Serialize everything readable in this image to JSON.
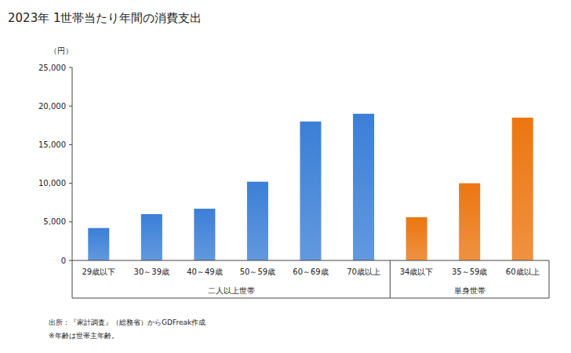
{
  "chart_data": {
    "type": "bar",
    "title": "2023年 1世帯当たり年間の消費支出",
    "y_label": "（円）",
    "categories": [
      "29歳以下",
      "30～39歳",
      "40～49歳",
      "50～59歳",
      "60～69歳",
      "70歳以上",
      "34歳以下",
      "35～59歳",
      "60歳以上"
    ],
    "values": [
      4200,
      6000,
      6700,
      10200,
      18000,
      19000,
      5600,
      10000,
      18500
    ],
    "colors": [
      "#3b7fd6",
      "#3b7fd6",
      "#3b7fd6",
      "#3b7fd6",
      "#3b7fd6",
      "#3b7fd6",
      "#ec7611",
      "#ec7611",
      "#ec7611"
    ],
    "groups": [
      {
        "name": "二人以上世帯",
        "size": 6
      },
      {
        "name": "単身世帯",
        "size": 3
      }
    ],
    "ylim": [
      0,
      25000
    ],
    "yticks": [
      {
        "value": 0,
        "label": "0"
      },
      {
        "value": 5000,
        "label": "5,000"
      },
      {
        "value": 10000,
        "label": "10,000"
      },
      {
        "value": 15000,
        "label": "15,000"
      },
      {
        "value": 20000,
        "label": "20,000"
      },
      {
        "value": 25000,
        "label": "25,000"
      }
    ],
    "grid": false,
    "notes": [
      "出所：『家計調査』（総務省）からGDFreak作成",
      "※年齢は世帯主年齢。"
    ]
  }
}
